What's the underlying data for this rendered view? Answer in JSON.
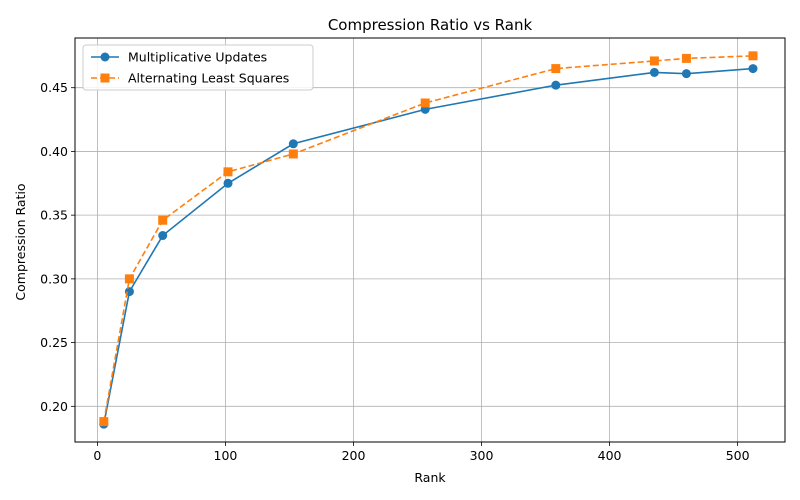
{
  "chart_data": {
    "type": "line",
    "title": "Compression Ratio vs Rank",
    "xlabel": "Rank",
    "ylabel": "Compression Ratio",
    "xlim": [
      -17.5,
      537
    ],
    "ylim": [
      0.172,
      0.489
    ],
    "xticks": [
      0,
      100,
      200,
      300,
      400,
      500
    ],
    "xtick_labels": [
      "0",
      "100",
      "200",
      "300",
      "400",
      "500"
    ],
    "yticks": [
      0.2,
      0.25,
      0.3,
      0.35,
      0.4,
      0.45
    ],
    "ytick_labels": [
      "0.20",
      "0.25",
      "0.30",
      "0.35",
      "0.40",
      "0.45"
    ],
    "grid": true,
    "legend_position": "top-left",
    "series": [
      {
        "name": "Multiplicative Updates",
        "color": "#1f77b4",
        "line_style": "solid",
        "marker": "circle",
        "x": [
          5,
          25,
          51,
          102,
          153,
          256,
          358,
          435,
          460,
          512
        ],
        "y": [
          0.186,
          0.29,
          0.334,
          0.375,
          0.406,
          0.433,
          0.452,
          0.462,
          0.461,
          0.465
        ]
      },
      {
        "name": "Alternating Least Squares",
        "color": "#ff7f0e",
        "line_style": "dashed",
        "marker": "square",
        "x": [
          5,
          25,
          51,
          102,
          153,
          256,
          358,
          435,
          460,
          512
        ],
        "y": [
          0.188,
          0.3,
          0.346,
          0.384,
          0.398,
          0.438,
          0.465,
          0.471,
          0.473,
          0.475
        ]
      }
    ]
  }
}
